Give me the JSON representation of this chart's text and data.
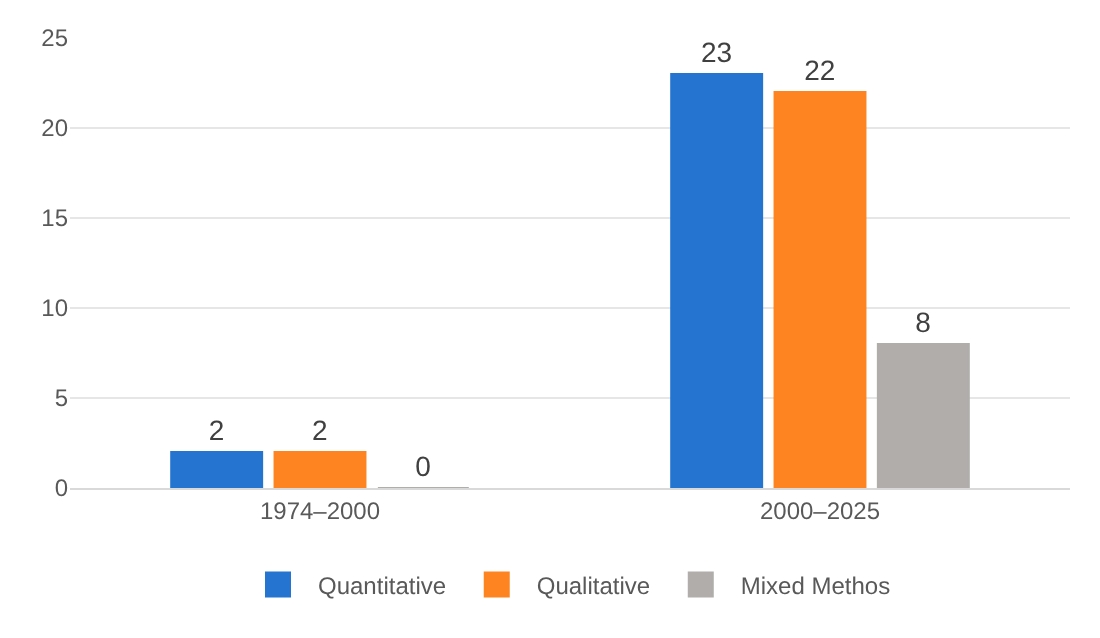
{
  "chart_data": {
    "type": "bar",
    "categories": [
      "1974–2000",
      "2000–2025"
    ],
    "series": [
      {
        "name": "Quantitative",
        "color": "#2474d0",
        "values": [
          2,
          23
        ]
      },
      {
        "name": "Qualitative",
        "color": "#fd8420",
        "values": [
          2,
          22
        ]
      },
      {
        "name": "Mixed Methos",
        "color": "#b0adab",
        "values": [
          0,
          8
        ]
      }
    ],
    "ylim": [
      0,
      25
    ],
    "yticks": [
      0,
      5,
      10,
      15,
      20,
      25
    ],
    "grid": "y",
    "legend": "bottom",
    "data_labels": true
  }
}
